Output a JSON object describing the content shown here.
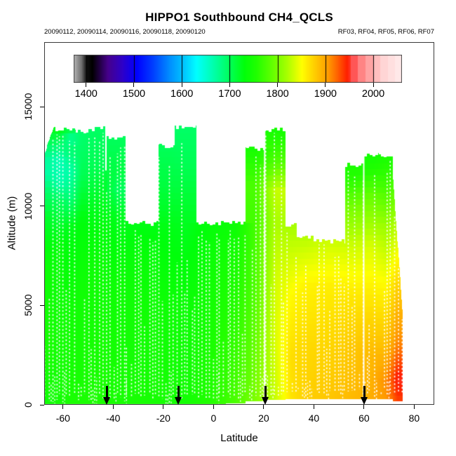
{
  "title": "HIPPO1 Southbound CH4_QCLS",
  "subtitle_left": "20090112, 20090114, 20090116, 20090118, 20090120",
  "subtitle_right": "RF03, RF04, RF05, RF06, RF07",
  "x_axis": {
    "label": "Latitude",
    "ticks": [
      -60,
      -40,
      -20,
      0,
      20,
      40,
      60,
      80
    ],
    "range": [
      -67.5,
      88.0
    ]
  },
  "y_axis": {
    "label": "Altitude (m)",
    "ticks": [
      0,
      5000,
      10000,
      15000
    ],
    "range": [
      0,
      18250
    ]
  },
  "colorbar": {
    "ticks": [
      1400,
      1500,
      1600,
      1700,
      1800,
      1900,
      2000
    ],
    "range": [
      1374,
      2060
    ],
    "stops": [
      [
        1374,
        "#B3B3B3"
      ],
      [
        1390,
        "#6E6E6E"
      ],
      [
        1400,
        "#111111"
      ],
      [
        1412,
        "#000000"
      ],
      [
        1445,
        "#46008C"
      ],
      [
        1475,
        "#2E00C8"
      ],
      [
        1505,
        "#0000FF"
      ],
      [
        1540,
        "#0040FF"
      ],
      [
        1575,
        "#0090FF"
      ],
      [
        1605,
        "#00C8FF"
      ],
      [
        1630,
        "#00FFFF"
      ],
      [
        1662,
        "#00FFB4"
      ],
      [
        1695,
        "#00FF64"
      ],
      [
        1730,
        "#00FF0A"
      ],
      [
        1755,
        "#20FF00"
      ],
      [
        1790,
        "#66FF00"
      ],
      [
        1820,
        "#AAFF00"
      ],
      [
        1850,
        "#FFFF00"
      ],
      [
        1880,
        "#FFC800"
      ],
      [
        1905,
        "#FF9B00"
      ],
      [
        1925,
        "#FF6000"
      ],
      [
        1945,
        "#FF1E00"
      ],
      [
        1958,
        "#FF5050"
      ],
      [
        1972,
        "#FF7D7D"
      ],
      [
        1988,
        "#FF9E9E"
      ],
      [
        2004,
        "#FFBCBC"
      ],
      [
        2022,
        "#FFD5D5"
      ],
      [
        2060,
        "#FFEDED"
      ]
    ]
  },
  "chart_data": {
    "type": "heatmap",
    "title": "HIPPO1 Southbound CH4_QCLS",
    "xlabel": "Latitude",
    "ylabel": "Altitude (m)",
    "xlim": [
      -67.5,
      88.0
    ],
    "ylim": [
      0,
      18250
    ],
    "value_ticks": [
      1400,
      1500,
      1600,
      1700,
      1800,
      1900,
      2000
    ],
    "arrow_lats": [
      -42.5,
      -14.0,
      20.7,
      60.1
    ],
    "separator_lats": [
      20.4,
      59.9
    ],
    "columns": [
      {
        "lat": [
          -67.5,
          -63.5
        ],
        "top": 12700,
        "top2": 13900,
        "base": 60,
        "points": [
          [
            0,
            1742
          ],
          [
            3000,
            1748
          ],
          [
            7000,
            1738
          ],
          [
            9500,
            1716
          ],
          [
            10800,
            1690
          ],
          [
            11600,
            1668
          ],
          [
            12400,
            1672
          ],
          [
            13900,
            1725
          ]
        ]
      },
      {
        "lat": [
          -63.5,
          -59.0
        ],
        "top": 13900,
        "base": 60,
        "points": [
          [
            0,
            1746
          ],
          [
            4000,
            1744
          ],
          [
            8000,
            1734
          ],
          [
            10300,
            1698
          ],
          [
            11200,
            1664
          ],
          [
            12300,
            1662
          ],
          [
            13100,
            1692
          ],
          [
            13900,
            1728
          ]
        ]
      },
      {
        "lat": [
          -59.0,
          -55.0
        ],
        "top": 13900,
        "base": 60,
        "points": [
          [
            0,
            1750
          ],
          [
            5000,
            1742
          ],
          [
            9000,
            1724
          ],
          [
            10500,
            1684
          ],
          [
            11800,
            1666
          ],
          [
            12800,
            1690
          ],
          [
            13400,
            1672
          ],
          [
            13900,
            1710
          ]
        ]
      },
      {
        "lat": [
          -55.0,
          -50.0
        ],
        "top": 13750,
        "base": 60,
        "points": [
          [
            0,
            1750
          ],
          [
            6000,
            1742
          ],
          [
            9500,
            1728
          ],
          [
            11500,
            1702
          ],
          [
            13000,
            1694
          ],
          [
            13750,
            1692
          ]
        ]
      },
      {
        "lat": [
          -50.0,
          -43.3
        ],
        "top": 13900,
        "base": 60,
        "points": [
          [
            0,
            1752
          ],
          [
            7000,
            1741
          ],
          [
            10000,
            1722
          ],
          [
            12000,
            1702
          ],
          [
            13900,
            1696
          ]
        ]
      },
      {
        "lat": [
          -43.3,
          -42.5
        ],
        "top": 11700,
        "base": 60,
        "points": [
          [
            0,
            1750
          ],
          [
            5000,
            1743
          ],
          [
            9200,
            1730
          ],
          [
            11700,
            1712
          ]
        ]
      },
      {
        "lat": [
          -42.5,
          -35.0
        ],
        "top": 13450,
        "base": 60,
        "points": [
          [
            0,
            1749
          ],
          [
            6000,
            1741
          ],
          [
            9500,
            1722
          ],
          [
            10800,
            1698
          ],
          [
            11800,
            1708
          ],
          [
            13450,
            1698
          ]
        ]
      },
      {
        "lat": [
          -35.0,
          -21.9
        ],
        "top": 9150,
        "base": 60,
        "points": [
          [
            0,
            1748
          ],
          [
            4500,
            1744
          ],
          [
            7500,
            1736
          ],
          [
            9150,
            1726
          ]
        ]
      },
      {
        "lat": [
          -21.9,
          -15.4
        ],
        "top": 13020,
        "base": 60,
        "points": [
          [
            0,
            1747
          ],
          [
            5000,
            1741
          ],
          [
            9000,
            1726
          ],
          [
            11000,
            1710
          ],
          [
            13020,
            1700
          ]
        ]
      },
      {
        "lat": [
          -15.4,
          -6.7
        ],
        "top": 14000,
        "base": 60,
        "points": [
          [
            0,
            1745
          ],
          [
            5000,
            1739
          ],
          [
            9500,
            1720
          ],
          [
            12000,
            1702
          ],
          [
            14000,
            1694
          ]
        ]
      },
      {
        "lat": [
          -6.7,
          5.0
        ],
        "top": 9150,
        "base": 60,
        "points": [
          [
            0,
            1757
          ],
          [
            4000,
            1748
          ],
          [
            7000,
            1741
          ],
          [
            9150,
            1733
          ]
        ]
      },
      {
        "lat": [
          5.0,
          12.9
        ],
        "top": 9150,
        "base": 100,
        "points": [
          [
            0,
            1778
          ],
          [
            3500,
            1764
          ],
          [
            6500,
            1752
          ],
          [
            9150,
            1740
          ]
        ]
      },
      {
        "lat": [
          12.9,
          20.4
        ],
        "top": 12900,
        "base": 200,
        "points": [
          [
            0,
            1802
          ],
          [
            3000,
            1790
          ],
          [
            6000,
            1778
          ],
          [
            9500,
            1772
          ],
          [
            11000,
            1776
          ],
          [
            12900,
            1748
          ]
        ]
      },
      {
        "lat": [
          20.4,
          28.8
        ],
        "top": 13850,
        "base": 280,
        "points": [
          [
            0,
            1830
          ],
          [
            3500,
            1838
          ],
          [
            6500,
            1834
          ],
          [
            9200,
            1820
          ],
          [
            10800,
            1830
          ],
          [
            12200,
            1780
          ],
          [
            13850,
            1746
          ]
        ]
      },
      {
        "lat": [
          28.8,
          33.2
        ],
        "top": 9050,
        "base": 300,
        "points": [
          [
            0,
            1864
          ],
          [
            2500,
            1868
          ],
          [
            5500,
            1852
          ],
          [
            9050,
            1818
          ]
        ]
      },
      {
        "lat": [
          33.2,
          40.0
        ],
        "top": 8450,
        "base": 300,
        "points": [
          [
            0,
            1876
          ],
          [
            3000,
            1870
          ],
          [
            6000,
            1856
          ],
          [
            8450,
            1824
          ]
        ]
      },
      {
        "lat": [
          40.0,
          52.6
        ],
        "top": 8250,
        "base": 300,
        "points": [
          [
            0,
            1882
          ],
          [
            3500,
            1870
          ],
          [
            6000,
            1858
          ],
          [
            8250,
            1832
          ]
        ]
      },
      {
        "lat": [
          52.6,
          59.9
        ],
        "top": 12100,
        "base": 300,
        "points": [
          [
            0,
            1890
          ],
          [
            3000,
            1880
          ],
          [
            5500,
            1862
          ],
          [
            8000,
            1832
          ],
          [
            10000,
            1796
          ],
          [
            11300,
            1760
          ],
          [
            12100,
            1750
          ]
        ]
      },
      {
        "lat": [
          59.9,
          66.0
        ],
        "top": 12600,
        "base": 300,
        "points": [
          [
            0,
            1896
          ],
          [
            2500,
            1888
          ],
          [
            5000,
            1866
          ],
          [
            8000,
            1836
          ],
          [
            10500,
            1790
          ],
          [
            11800,
            1754
          ],
          [
            12600,
            1744
          ]
        ]
      },
      {
        "lat": [
          66.0,
          71.5
        ],
        "top": 12500,
        "base": 300,
        "points": [
          [
            0,
            1904
          ],
          [
            1200,
            1910
          ],
          [
            3000,
            1884
          ],
          [
            6000,
            1852
          ],
          [
            9000,
            1814
          ],
          [
            11000,
            1772
          ],
          [
            12500,
            1750
          ]
        ]
      },
      {
        "lat": [
          71.5,
          75.3
        ],
        "top": 11600,
        "top2": 4800,
        "base": 200,
        "points": [
          [
            0,
            1932
          ],
          [
            1300,
            1950
          ],
          [
            3000,
            1914
          ],
          [
            6000,
            1874
          ],
          [
            9000,
            1826
          ],
          [
            11600,
            1768
          ]
        ]
      }
    ]
  }
}
